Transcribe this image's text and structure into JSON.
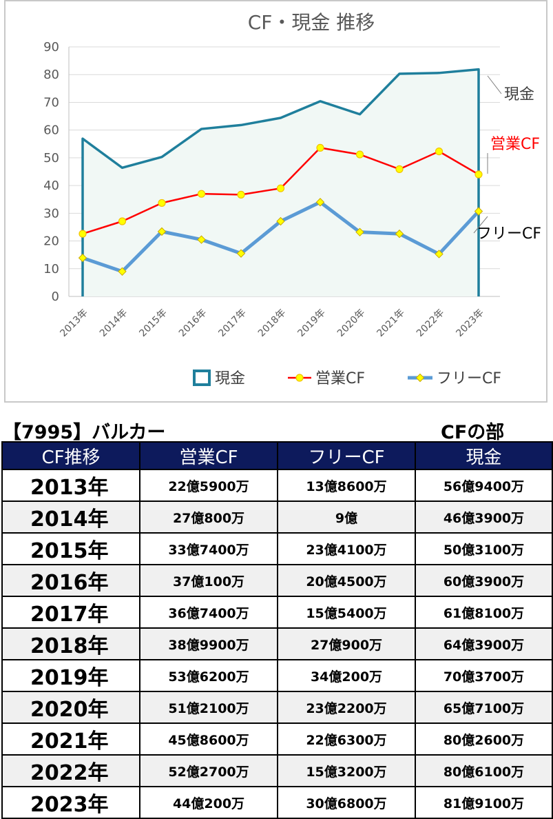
{
  "chart_data": {
    "type": "line",
    "title": "CF・現金 推移",
    "categories": [
      "2013年",
      "2014年",
      "2015年",
      "2016年",
      "2017年",
      "2018年",
      "2019年",
      "2020年",
      "2021年",
      "2022年",
      "2023年"
    ],
    "ylim": [
      0,
      90
    ],
    "yticks": [
      "0",
      "10",
      "20",
      "30",
      "40",
      "50",
      "60",
      "70",
      "80",
      "90"
    ],
    "grid": true,
    "legend_position": "bottom",
    "series": [
      {
        "name": "現金",
        "values": [
          56.9,
          46.4,
          50.3,
          60.4,
          61.8,
          64.4,
          70.4,
          65.7,
          80.3,
          80.6,
          81.9
        ],
        "color": "#1f7f9c",
        "style": "area-line",
        "end_label": "現金"
      },
      {
        "name": "営業CF",
        "values": [
          22.6,
          27.1,
          33.7,
          37.0,
          36.7,
          38.99,
          53.6,
          51.2,
          45.9,
          52.3,
          44.0
        ],
        "color": "#ff0000",
        "marker_color": "#ffff00",
        "style": "line-marker",
        "end_label": "営業CF"
      },
      {
        "name": "フリーCF",
        "values": [
          13.9,
          9.0,
          23.4,
          20.5,
          15.5,
          27.1,
          34.0,
          23.2,
          22.6,
          15.3,
          30.7
        ],
        "color": "#5b9bd5",
        "marker_color": "#ffff00",
        "style": "line-marker",
        "end_label": "フリーCF"
      }
    ],
    "end_label_colors": {
      "現金": "#404040",
      "営業CF": "#ff0000",
      "フリーCF": "#000000"
    }
  },
  "table": {
    "company": "【7995】バルカー",
    "section": "CFの部",
    "headers": [
      "CF推移",
      "営業CF",
      "フリーCF",
      "現金"
    ],
    "rows": [
      {
        "year": "2013年",
        "op": "22億5900万",
        "free": "13億8600万",
        "cash": "56億9400万"
      },
      {
        "year": "2014年",
        "op": "27億800万",
        "free": "9億",
        "cash": "46億3900万"
      },
      {
        "year": "2015年",
        "op": "33億7400万",
        "free": "23億4100万",
        "cash": "50億3100万"
      },
      {
        "year": "2016年",
        "op": "37億100万",
        "free": "20億4500万",
        "cash": "60億3900万"
      },
      {
        "year": "2017年",
        "op": "36億7400万",
        "free": "15億5400万",
        "cash": "61億8100万"
      },
      {
        "year": "2018年",
        "op": "38億9900万",
        "free": "27億900万",
        "cash": "64億3900万"
      },
      {
        "year": "2019年",
        "op": "53億6200万",
        "free": "34億200万",
        "cash": "70億3700万"
      },
      {
        "year": "2020年",
        "op": "51億2100万",
        "free": "23億2200万",
        "cash": "65億7100万"
      },
      {
        "year": "2021年",
        "op": "45億8600万",
        "free": "22億6300万",
        "cash": "80億2600万"
      },
      {
        "year": "2022年",
        "op": "52億2700万",
        "free": "15億3200万",
        "cash": "80億6100万"
      },
      {
        "year": "2023年",
        "op": "44億200万",
        "free": "30億6800万",
        "cash": "81億9100万"
      }
    ]
  }
}
